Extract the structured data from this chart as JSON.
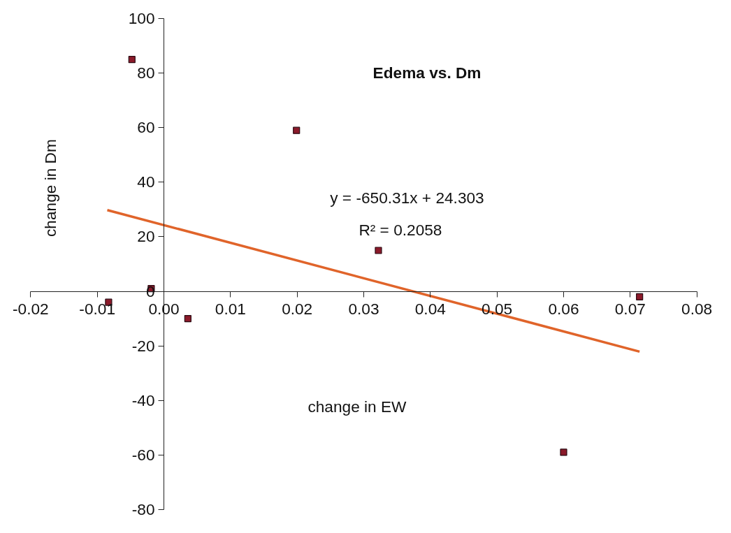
{
  "chart_data": {
    "type": "scatter",
    "title": "Edema vs. Dm",
    "xlabel": "change in EW",
    "ylabel": "change in Dm",
    "annotations": [
      "y = -650.31x + 24.303",
      "R² = 0.2058"
    ],
    "xlim": [
      -0.02,
      0.08
    ],
    "ylim": [
      -80,
      100
    ],
    "xticks": [
      -0.02,
      -0.01,
      {
        "value": 0,
        "label": "0.00"
      },
      0.01,
      0.02,
      0.03,
      0.04,
      0.05,
      0.06,
      0.07,
      0.08
    ],
    "yticks": [
      -80,
      -60,
      -40,
      -20,
      0,
      20,
      40,
      60,
      80,
      100
    ],
    "grid": false,
    "series": [
      {
        "marker": "square",
        "color": "#8b1a2a",
        "x": [
          -0.0083,
          -0.0048,
          -0.0019,
          0.0036,
          0.0199,
          0.0322,
          0.06,
          0.0714
        ],
        "values": [
          -4,
          85,
          1,
          -10,
          59,
          15,
          -59,
          -2
        ]
      },
      {
        "type": "line",
        "marker": "none",
        "line_style": "solid",
        "color": "#e0642a",
        "x": [
          -0.0085,
          0.0714
        ],
        "values": [
          29.8,
          -22.1
        ]
      }
    ]
  }
}
